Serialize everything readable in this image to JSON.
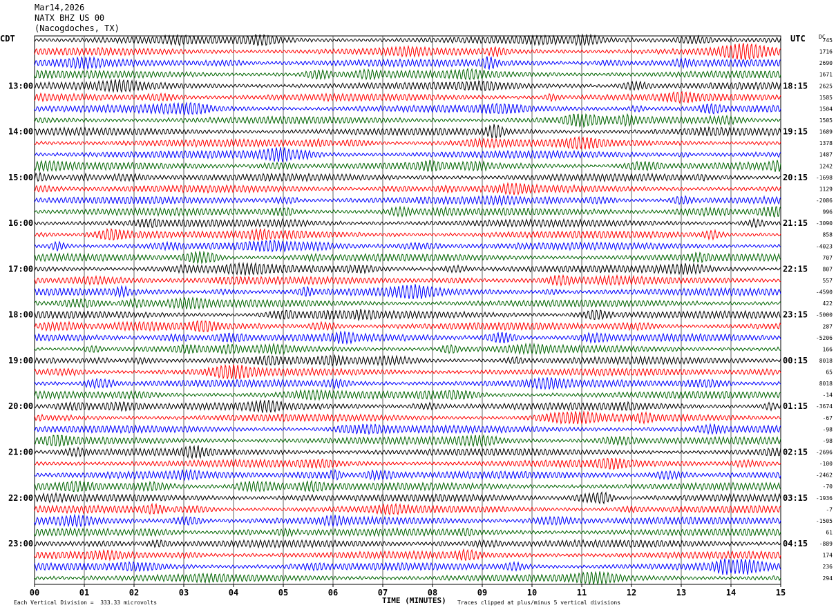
{
  "header": {
    "date": "Mar14,2026",
    "station": "NATX BHZ US 00",
    "location": "(Nacogdoches, TX)"
  },
  "corners": {
    "left": "CDT",
    "right": "UTC",
    "dc": "DC"
  },
  "footer": {
    "scale": "Each Vertical Division =  333.33 microvolts",
    "xtitle": "TIME (MINUTES)",
    "clip": "Traces clipped at plus/minus 5 vertical divisions"
  },
  "colors": {
    "cycle": [
      "#000000",
      "#ff0000",
      "#0000ff",
      "#006400"
    ],
    "grid": "#000000"
  },
  "chart_data": {
    "type": "line",
    "x_ticks": [
      "00",
      "01",
      "02",
      "03",
      "04",
      "05",
      "06",
      "07",
      "08",
      "09",
      "10",
      "11",
      "12",
      "13",
      "14",
      "15"
    ],
    "xlim": [
      0,
      15
    ],
    "xlabel": "TIME (MINUTES)",
    "left_time_labels": [
      "13:00",
      "14:00",
      "15:00",
      "16:00",
      "17:00",
      "18:00",
      "19:00",
      "20:00",
      "21:00",
      "22:00",
      "23:00"
    ],
    "right_time_labels": [
      "18:15",
      "19:15",
      "20:15",
      "21:15",
      "22:15",
      "23:15",
      "00:15",
      "01:15",
      "02:15",
      "03:15",
      "04:15"
    ],
    "trace_count": 48,
    "dc_offsets": [
      "745",
      "1716",
      "2690",
      "1671",
      "2625",
      "1585",
      "1504",
      "1505",
      "1689",
      "1378",
      "1487",
      "1242",
      "-1698",
      "1129",
      "-2086",
      "996",
      "-3090",
      "858",
      "-4023",
      "707",
      "807",
      "557",
      "-4590",
      "422",
      "-5000",
      "287",
      "-5206",
      "166",
      "8018",
      "65",
      "8018",
      "-14",
      "-3674",
      "-67",
      "-98",
      "-98",
      "-2696",
      "-100",
      "-2462",
      "-70",
      "-1936",
      "-7",
      "-1505",
      "61",
      "-889",
      "174",
      "236",
      "294"
    ]
  }
}
